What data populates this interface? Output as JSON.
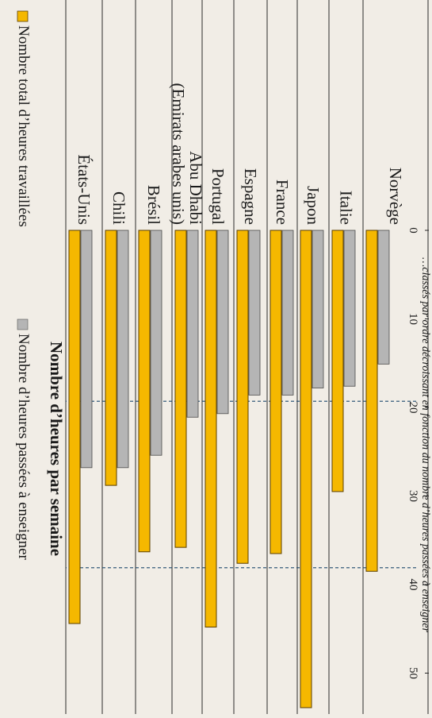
{
  "chart_data": {
    "type": "bar",
    "orientation": "rotated-page",
    "title": "Nombre d’heures par semaine",
    "footnote": "…classés par ordre décroissant en fonction du nombre d’heures passées à enseigner",
    "categories": [
      [
        "États-Unis"
      ],
      [
        "Chili"
      ],
      [
        "Brésil"
      ],
      [
        "Abu Dhabi",
        "(Emirats arabes unis)"
      ],
      [
        "Portugal"
      ],
      [
        "Espagne"
      ],
      [
        "France"
      ],
      [
        "Japon"
      ],
      [
        "Italie"
      ],
      [
        "Norvège"
      ]
    ],
    "series": [
      {
        "name": "Nombre total d’heures travaillées",
        "color": "#f5b800",
        "values": [
          44.4,
          28.8,
          36.3,
          35.8,
          44.8,
          37.6,
          36.5,
          53.9,
          29.5,
          38.5
        ]
      },
      {
        "name": "Nombre d’heures passées à enseigner",
        "color": "#b5b5b5",
        "values": [
          26.8,
          26.8,
          25.4,
          21.1,
          20.7,
          18.6,
          18.6,
          17.8,
          17.6,
          15.1
        ]
      }
    ],
    "axis": {
      "min": 0,
      "max": 50,
      "ticks": [
        "0",
        "10",
        "20",
        "30",
        "40",
        "50"
      ]
    },
    "reference_lines": [
      19.3,
      38.1
    ],
    "legend_position": "top"
  }
}
